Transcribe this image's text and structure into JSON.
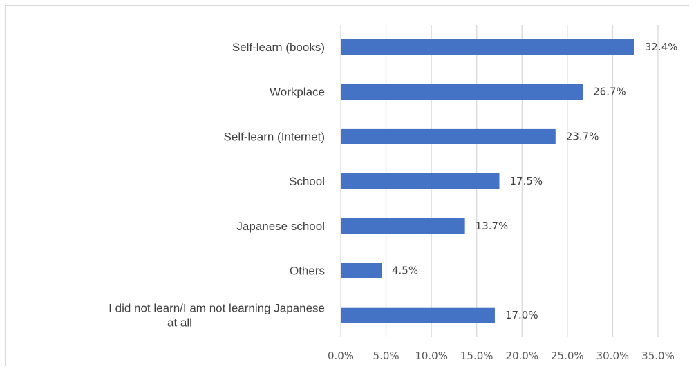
{
  "chart_data": {
    "type": "bar",
    "orientation": "horizontal",
    "categories": [
      "Self-learn (books)",
      "Workplace",
      "Self-learn (Internet)",
      "School",
      "Japanese school",
      "Others",
      "I did not learn/I am not learning Japanese at all"
    ],
    "category_lines": [
      [
        "Self-learn (books)"
      ],
      [
        "Workplace"
      ],
      [
        "Self-learn (Internet)"
      ],
      [
        "School"
      ],
      [
        "Japanese school"
      ],
      [
        "Others"
      ],
      [
        "I did not learn/I am not learning Japanese",
        "at all"
      ]
    ],
    "values": [
      32.4,
      26.7,
      23.7,
      17.5,
      13.7,
      4.5,
      17.0
    ],
    "data_labels": [
      "32.4%",
      "26.7%",
      "23.7%",
      "17.5%",
      "13.7%",
      "4.5%",
      "17.0%"
    ],
    "xlim": [
      0,
      35
    ],
    "ticks": [
      0,
      5,
      10,
      15,
      20,
      25,
      30,
      35
    ],
    "tick_labels": [
      "0.0%",
      "5.0%",
      "10.0%",
      "15.0%",
      "20.0%",
      "25.0%",
      "30.0%",
      "35.0%"
    ],
    "grid": true,
    "legend": "none",
    "bar_color": "#4472c4",
    "grid_color": "#d9d9d9",
    "title": "",
    "xlabel": "",
    "ylabel": ""
  }
}
